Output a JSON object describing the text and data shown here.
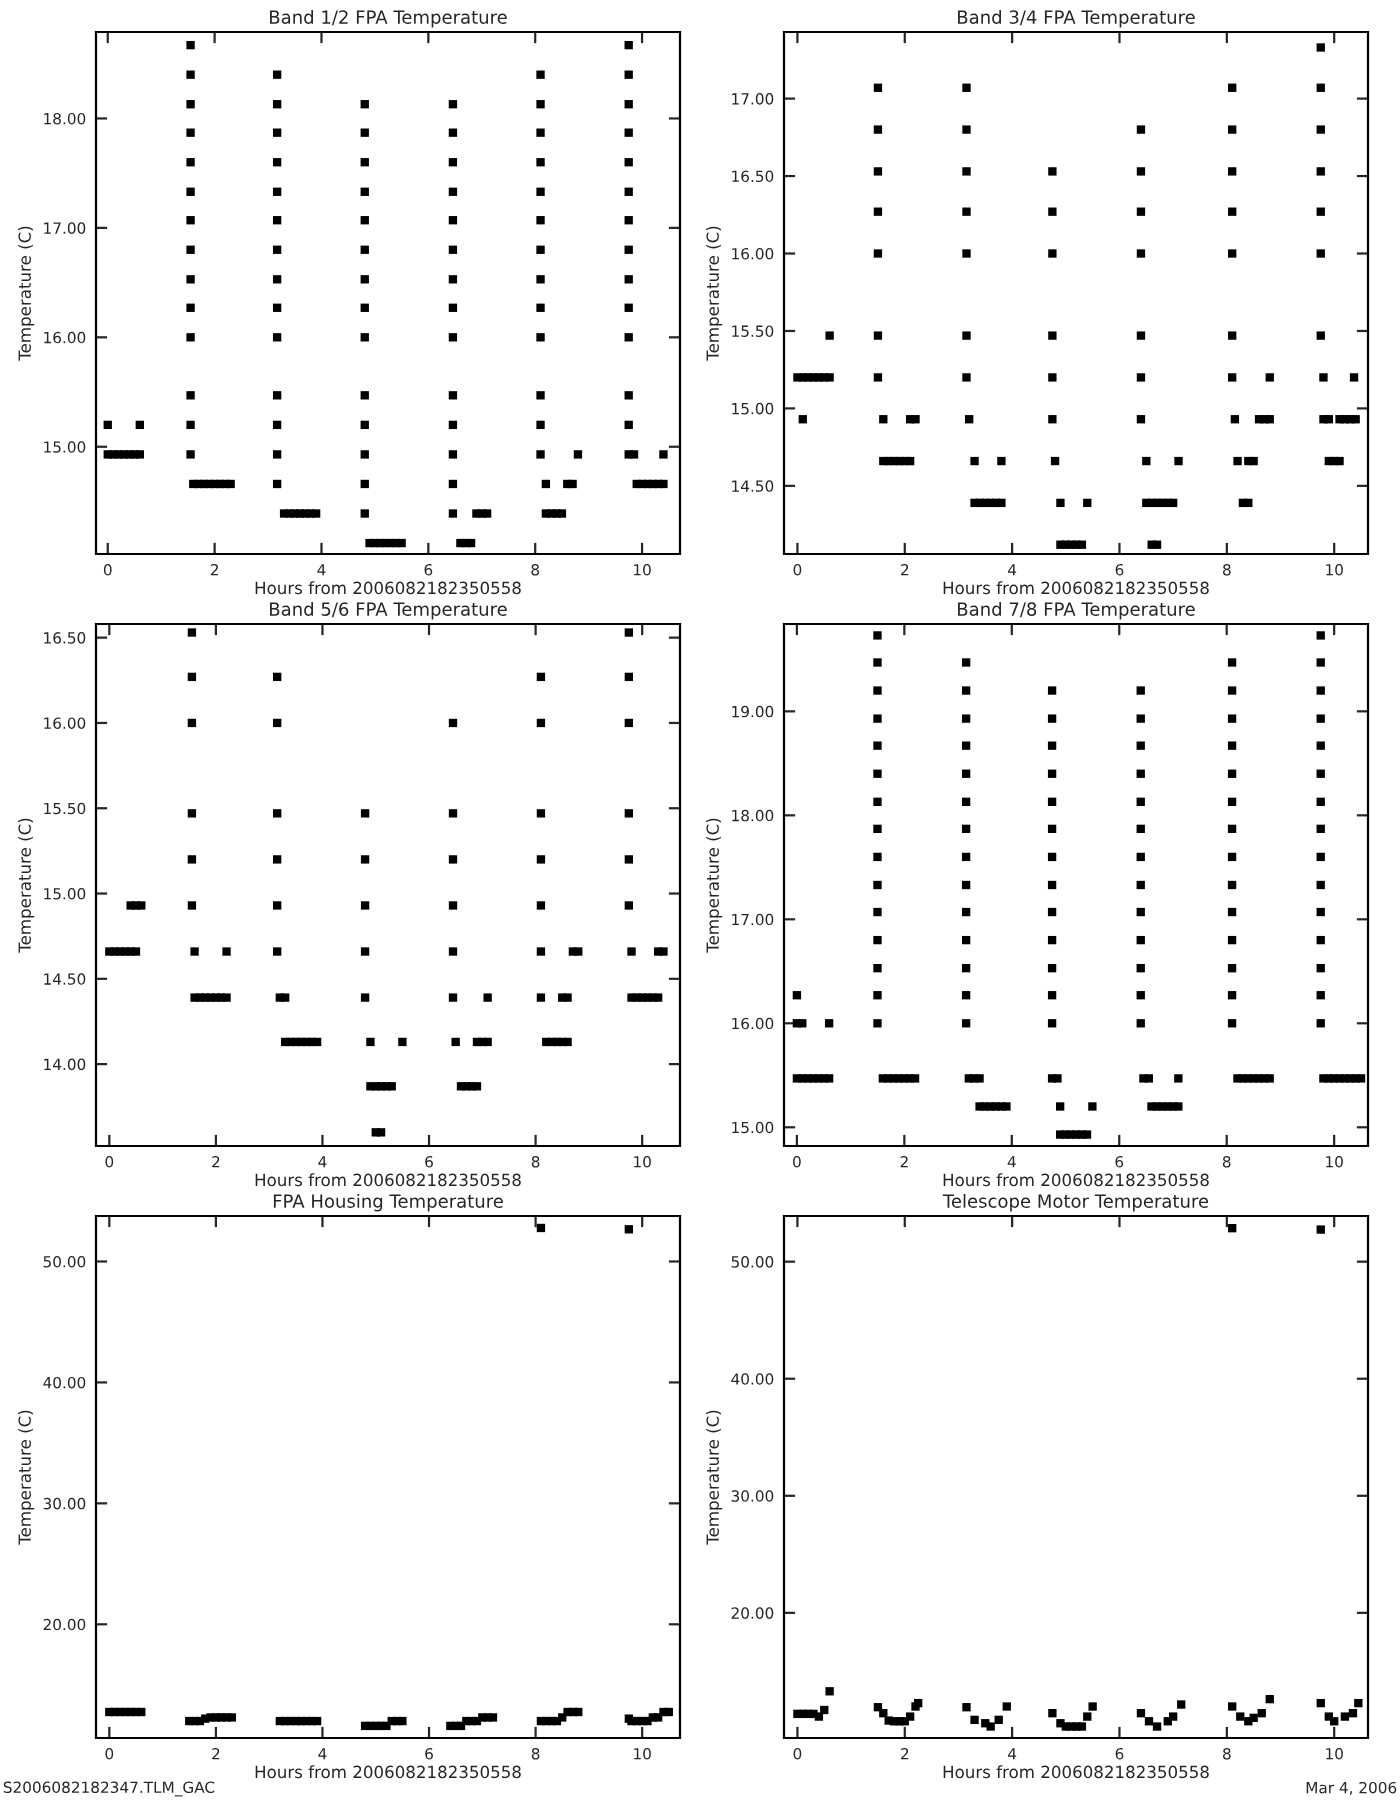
{
  "chart_data": [
    {
      "type": "scatter",
      "title": "Band 1/2 FPA Temperature",
      "xlabel": "Hours from 2006082182350558",
      "ylabel": "Temperature (C)",
      "marker": "square",
      "color": "#000000",
      "xlim": [
        -0.22,
        10.71
      ],
      "ylim": [
        14.02,
        18.79
      ],
      "xticks": [
        0,
        2,
        4,
        6,
        8,
        10
      ],
      "yticks": [
        {
          "value": 15,
          "label": "15.00"
        },
        {
          "value": 16,
          "label": "16.00"
        },
        {
          "value": 17,
          "label": "17.00"
        },
        {
          "value": 18,
          "label": "18.00"
        }
      ],
      "x": [
        0,
        0.1,
        0.2,
        0.3,
        0.4,
        0.5,
        0.6,
        0,
        0.6,
        1.55,
        1.55,
        1.55,
        1.55,
        1.55,
        1.55,
        1.55,
        1.55,
        1.55,
        1.55,
        1.55,
        1.55,
        1.55,
        1.55,
        1.6,
        1.7,
        1.8,
        1.9,
        2.0,
        2.1,
        2.2,
        2.3,
        3.17,
        3.17,
        3.17,
        3.17,
        3.17,
        3.17,
        3.17,
        3.17,
        3.17,
        3.17,
        3.17,
        3.17,
        3.17,
        3.17,
        3.3,
        3.4,
        3.5,
        3.6,
        3.7,
        3.8,
        3.9,
        4.81,
        4.81,
        4.81,
        4.81,
        4.81,
        4.81,
        4.81,
        4.81,
        4.81,
        4.81,
        4.81,
        4.81,
        4.81,
        4.81,
        4.9,
        5.0,
        5.1,
        5.2,
        5.3,
        5.4,
        5.5,
        6.46,
        6.46,
        6.46,
        6.46,
        6.46,
        6.46,
        6.46,
        6.46,
        6.46,
        6.46,
        6.46,
        6.46,
        6.46,
        6.46,
        6.6,
        6.7,
        6.8,
        6.9,
        7.0,
        7.1,
        8.1,
        8.1,
        8.1,
        8.1,
        8.1,
        8.1,
        8.1,
        8.1,
        8.1,
        8.1,
        8.1,
        8.1,
        8.1,
        8.2,
        8.2,
        8.3,
        8.4,
        8.5,
        8.6,
        8.7,
        8.8,
        9.75,
        9.75,
        9.75,
        9.75,
        9.75,
        9.75,
        9.75,
        9.75,
        9.75,
        9.75,
        9.75,
        9.75,
        9.75,
        9.75,
        9.85,
        9.9,
        10.0,
        10.1,
        10.2,
        10.3,
        10.4,
        10.4
      ],
      "values": [
        14.93,
        14.93,
        14.93,
        14.93,
        14.93,
        14.93,
        14.93,
        15.2,
        15.2,
        14.93,
        15.2,
        15.47,
        16.0,
        16.27,
        16.53,
        16.8,
        17.07,
        17.33,
        17.6,
        17.87,
        18.13,
        18.4,
        18.67,
        14.66,
        14.66,
        14.66,
        14.66,
        14.66,
        14.66,
        14.66,
        14.66,
        14.66,
        14.93,
        15.2,
        15.47,
        16.0,
        16.27,
        16.53,
        16.8,
        17.07,
        17.33,
        17.6,
        17.87,
        18.13,
        18.4,
        14.39,
        14.39,
        14.39,
        14.39,
        14.39,
        14.39,
        14.39,
        14.39,
        14.66,
        14.93,
        15.2,
        15.47,
        16.0,
        16.27,
        16.53,
        16.8,
        17.07,
        17.33,
        17.6,
        17.87,
        18.13,
        14.12,
        14.12,
        14.12,
        14.12,
        14.12,
        14.12,
        14.12,
        14.39,
        14.66,
        14.93,
        15.2,
        15.47,
        16.0,
        16.27,
        16.53,
        16.8,
        17.07,
        17.33,
        17.6,
        17.87,
        18.13,
        14.12,
        14.12,
        14.12,
        14.39,
        14.39,
        14.39,
        14.93,
        15.2,
        15.47,
        16.0,
        16.27,
        16.53,
        16.8,
        17.07,
        17.33,
        17.6,
        17.87,
        18.13,
        18.4,
        14.66,
        14.39,
        14.39,
        14.39,
        14.39,
        14.66,
        14.66,
        14.93,
        14.93,
        15.2,
        15.47,
        16.0,
        16.27,
        16.53,
        16.8,
        17.07,
        17.33,
        17.6,
        17.87,
        18.13,
        18.4,
        18.67,
        14.93,
        14.66,
        14.66,
        14.66,
        14.66,
        14.66,
        14.66,
        14.93
      ]
    },
    {
      "type": "scatter",
      "title": "Band 3/4 FPA Temperature",
      "xlabel": "Hours from 2006082182350558",
      "ylabel": "Temperature (C)",
      "marker": "square",
      "color": "#000000",
      "xlim": [
        -0.25,
        10.63
      ],
      "ylim": [
        14.06,
        17.43
      ],
      "xticks": [
        0,
        2,
        4,
        6,
        8,
        10
      ],
      "yticks": [
        {
          "value": 14.5,
          "label": "14.50"
        },
        {
          "value": 15,
          "label": "15.00"
        },
        {
          "value": 15.5,
          "label": "15.50"
        },
        {
          "value": 16,
          "label": "16.00"
        },
        {
          "value": 16.5,
          "label": "16.50"
        },
        {
          "value": 17,
          "label": "17.00"
        }
      ],
      "x": [
        0,
        0.1,
        0.2,
        0.3,
        0.4,
        0.5,
        0.6,
        0.1,
        0.6,
        1.5,
        1.5,
        1.5,
        1.5,
        1.5,
        1.5,
        1.5,
        1.6,
        1.6,
        1.7,
        1.8,
        1.9,
        2.0,
        2.1,
        2.1,
        2.2,
        3.15,
        3.15,
        3.15,
        3.15,
        3.15,
        3.15,
        3.15,
        3.2,
        3.3,
        3.8,
        3.3,
        3.4,
        3.5,
        3.6,
        3.7,
        3.8,
        4.75,
        4.75,
        4.75,
        4.75,
        4.75,
        4.75,
        4.8,
        4.9,
        4.9,
        5.0,
        5.1,
        5.2,
        5.3,
        5.4,
        6.4,
        6.4,
        6.4,
        6.4,
        6.4,
        6.4,
        6.4,
        6.5,
        6.5,
        6.6,
        6.7,
        6.8,
        6.9,
        7.0,
        6.6,
        6.7,
        7.1,
        8.1,
        8.1,
        8.1,
        8.1,
        8.1,
        8.1,
        8.1,
        8.15,
        8.2,
        8.4,
        8.5,
        8.3,
        8.4,
        8.6,
        8.7,
        8.8,
        8.8,
        9.75,
        9.75,
        9.75,
        9.75,
        9.75,
        9.75,
        9.75,
        9.8,
        9.8,
        9.9,
        9.9,
        10.0,
        10.1,
        10.1,
        10.2,
        10.3,
        10.4,
        10.37
      ],
      "values": [
        15.2,
        15.2,
        15.2,
        15.2,
        15.2,
        15.2,
        15.2,
        14.93,
        15.47,
        15.2,
        15.47,
        16.0,
        16.27,
        16.53,
        16.8,
        17.07,
        14.93,
        14.66,
        14.66,
        14.66,
        14.66,
        14.66,
        14.66,
        14.93,
        14.93,
        15.2,
        15.47,
        16.0,
        16.27,
        16.53,
        16.8,
        17.07,
        14.93,
        14.66,
        14.66,
        14.39,
        14.39,
        14.39,
        14.39,
        14.39,
        14.39,
        14.93,
        15.2,
        15.47,
        16.0,
        16.27,
        16.53,
        14.66,
        14.39,
        14.12,
        14.12,
        14.12,
        14.12,
        14.12,
        14.39,
        14.93,
        15.2,
        15.47,
        16.0,
        16.27,
        16.53,
        16.8,
        14.66,
        14.39,
        14.39,
        14.39,
        14.39,
        14.39,
        14.39,
        14.12,
        14.12,
        14.66,
        15.2,
        15.47,
        16.0,
        16.27,
        16.53,
        16.8,
        17.07,
        14.93,
        14.66,
        14.66,
        14.66,
        14.39,
        14.39,
        14.93,
        14.93,
        14.93,
        15.2,
        15.47,
        16.0,
        16.27,
        16.53,
        16.8,
        17.07,
        17.33,
        15.2,
        14.93,
        14.93,
        14.66,
        14.66,
        14.66,
        14.93,
        14.93,
        14.93,
        14.93,
        15.2
      ]
    },
    {
      "type": "scatter",
      "title": "Band 5/6 FPA Temperature",
      "xlabel": "Hours from 2006082182350558",
      "ylabel": "Temperature (C)",
      "marker": "square",
      "color": "#000000",
      "xlim": [
        -0.25,
        10.71
      ],
      "ylim": [
        13.52,
        16.58
      ],
      "xticks": [
        0,
        2,
        4,
        6,
        8,
        10
      ],
      "yticks": [
        {
          "value": 14,
          "label": "14.00"
        },
        {
          "value": 14.5,
          "label": "14.50"
        },
        {
          "value": 15,
          "label": "15.00"
        },
        {
          "value": 15.5,
          "label": "15.50"
        },
        {
          "value": 16,
          "label": "16.00"
        },
        {
          "value": 16.5,
          "label": "16.50"
        }
      ],
      "x": [
        0,
        0.1,
        0.2,
        0.3,
        0.4,
        0.5,
        0.4,
        0.5,
        0.6,
        1.55,
        1.55,
        1.55,
        1.55,
        1.55,
        1.55,
        1.6,
        1.6,
        1.7,
        1.8,
        1.9,
        2.0,
        2.1,
        2.2,
        2.2,
        3.15,
        3.15,
        3.15,
        3.15,
        3.15,
        3.15,
        3.2,
        3.3,
        3.3,
        3.4,
        3.5,
        3.6,
        3.7,
        3.8,
        3.9,
        4.8,
        4.8,
        4.8,
        4.8,
        4.8,
        4.9,
        4.9,
        5.0,
        5.1,
        5.2,
        5.3,
        5.0,
        5.1,
        5.5,
        6.45,
        6.45,
        6.45,
        6.45,
        6.45,
        6.45,
        6.5,
        6.6,
        6.7,
        6.8,
        6.9,
        6.9,
        7.0,
        7.1,
        7.1,
        8.1,
        8.1,
        8.1,
        8.1,
        8.1,
        8.1,
        8.1,
        8.2,
        8.3,
        8.4,
        8.5,
        8.6,
        8.5,
        8.6,
        8.7,
        8.8,
        9.75,
        9.75,
        9.75,
        9.75,
        9.75,
        9.75,
        9.8,
        9.8,
        9.9,
        10.0,
        10.1,
        10.2,
        10.3,
        10.3,
        10.4
      ],
      "values": [
        14.66,
        14.66,
        14.66,
        14.66,
        14.66,
        14.66,
        14.93,
        14.93,
        14.93,
        14.93,
        15.2,
        15.47,
        16.0,
        16.27,
        16.53,
        14.66,
        14.39,
        14.39,
        14.39,
        14.39,
        14.39,
        14.39,
        14.39,
        14.66,
        14.66,
        14.93,
        15.2,
        15.47,
        16.0,
        16.27,
        14.39,
        14.39,
        14.13,
        14.13,
        14.13,
        14.13,
        14.13,
        14.13,
        14.13,
        14.39,
        14.66,
        14.93,
        15.2,
        15.47,
        14.13,
        13.87,
        13.87,
        13.87,
        13.87,
        13.87,
        13.6,
        13.6,
        14.13,
        14.39,
        14.66,
        14.93,
        15.2,
        15.47,
        16.0,
        14.13,
        13.87,
        13.87,
        13.87,
        13.87,
        14.13,
        14.13,
        14.13,
        14.39,
        14.39,
        14.66,
        14.93,
        15.2,
        15.47,
        16.0,
        16.27,
        14.13,
        14.13,
        14.13,
        14.13,
        14.13,
        14.39,
        14.39,
        14.66,
        14.66,
        14.93,
        15.2,
        15.47,
        16.0,
        16.27,
        16.53,
        14.66,
        14.39,
        14.39,
        14.39,
        14.39,
        14.39,
        14.39,
        14.66,
        14.66
      ]
    },
    {
      "type": "scatter",
      "title": "Band 7/8 FPA Temperature",
      "xlabel": "Hours from 2006082182350558",
      "ylabel": "Temperature (C)",
      "marker": "square",
      "color": "#000000",
      "xlim": [
        -0.24,
        10.63
      ],
      "ylim": [
        14.82,
        19.84
      ],
      "xticks": [
        0,
        2,
        4,
        6,
        8,
        10
      ],
      "yticks": [
        {
          "value": 15,
          "label": "15.00"
        },
        {
          "value": 16,
          "label": "16.00"
        },
        {
          "value": 17,
          "label": "17.00"
        },
        {
          "value": 18,
          "label": "18.00"
        },
        {
          "value": 19,
          "label": "19.00"
        }
      ],
      "x": [
        0,
        0.1,
        0.2,
        0.3,
        0.4,
        0.5,
        0.6,
        0,
        0.1,
        0.6,
        0,
        1.5,
        1.5,
        1.5,
        1.5,
        1.5,
        1.5,
        1.5,
        1.5,
        1.5,
        1.5,
        1.5,
        1.5,
        1.5,
        1.5,
        1.5,
        1.6,
        1.7,
        1.8,
        1.9,
        2.0,
        2.1,
        2.2,
        3.15,
        3.15,
        3.15,
        3.15,
        3.15,
        3.15,
        3.15,
        3.15,
        3.15,
        3.15,
        3.15,
        3.15,
        3.15,
        3.15,
        3.2,
        3.3,
        3.4,
        3.4,
        3.5,
        3.6,
        3.7,
        3.8,
        3.9,
        4.75,
        4.75,
        4.75,
        4.75,
        4.75,
        4.75,
        4.75,
        4.75,
        4.75,
        4.75,
        4.75,
        4.75,
        4.75,
        4.75,
        4.85,
        4.9,
        5.5,
        4.9,
        5.0,
        5.1,
        5.2,
        5.3,
        5.4,
        6.4,
        6.4,
        6.4,
        6.4,
        6.4,
        6.4,
        6.4,
        6.4,
        6.4,
        6.4,
        6.4,
        6.4,
        6.4,
        6.45,
        6.55,
        7.1,
        6.6,
        6.7,
        6.8,
        6.9,
        7.0,
        7.1,
        8.1,
        8.1,
        8.1,
        8.1,
        8.1,
        8.1,
        8.1,
        8.1,
        8.1,
        8.1,
        8.1,
        8.1,
        8.1,
        8.1,
        8.2,
        8.3,
        8.4,
        8.5,
        8.6,
        8.7,
        8.8,
        9.75,
        9.75,
        9.75,
        9.75,
        9.75,
        9.75,
        9.75,
        9.75,
        9.75,
        9.75,
        9.75,
        9.75,
        9.75,
        9.75,
        9.75,
        9.8,
        9.9,
        10.0,
        10.1,
        10.2,
        10.3,
        10.4,
        10.5
      ],
      "values": [
        15.47,
        15.47,
        15.47,
        15.47,
        15.47,
        15.47,
        15.47,
        16.0,
        16.0,
        16.0,
        16.27,
        16.0,
        16.27,
        16.53,
        16.8,
        17.07,
        17.33,
        17.6,
        17.87,
        18.13,
        18.4,
        18.67,
        18.93,
        19.2,
        19.47,
        19.73,
        15.47,
        15.47,
        15.47,
        15.47,
        15.47,
        15.47,
        15.47,
        16.0,
        16.27,
        16.53,
        16.8,
        17.07,
        17.33,
        17.6,
        17.87,
        18.13,
        18.4,
        18.67,
        18.93,
        19.2,
        19.47,
        15.47,
        15.47,
        15.47,
        15.2,
        15.2,
        15.2,
        15.2,
        15.2,
        15.2,
        16.0,
        16.27,
        16.53,
        16.8,
        17.07,
        17.33,
        17.6,
        17.87,
        18.13,
        18.4,
        18.67,
        18.93,
        19.2,
        15.47,
        15.47,
        15.2,
        15.2,
        14.93,
        14.93,
        14.93,
        14.93,
        14.93,
        14.93,
        16.0,
        16.27,
        16.53,
        16.8,
        17.07,
        17.33,
        17.6,
        17.87,
        18.13,
        18.4,
        18.67,
        18.93,
        19.2,
        15.47,
        15.47,
        15.47,
        15.2,
        15.2,
        15.2,
        15.2,
        15.2,
        15.2,
        16.0,
        16.27,
        16.53,
        16.8,
        17.07,
        17.33,
        17.6,
        17.87,
        18.13,
        18.4,
        18.67,
        18.93,
        19.2,
        19.47,
        15.47,
        15.47,
        15.47,
        15.47,
        15.47,
        15.47,
        15.47,
        16.0,
        16.27,
        16.53,
        16.8,
        17.07,
        17.33,
        17.6,
        17.87,
        18.13,
        18.4,
        18.67,
        18.93,
        19.2,
        19.47,
        19.73,
        15.47,
        15.47,
        15.47,
        15.47,
        15.47,
        15.47,
        15.47,
        15.47
      ]
    },
    {
      "type": "scatter",
      "title": "FPA Housing Temperature",
      "xlabel": "Hours from 2006082182350558",
      "ylabel": "Temperature (C)",
      "marker": "square",
      "color": "#000000",
      "xlim": [
        -0.25,
        10.71
      ],
      "ylim": [
        10.6,
        53.76
      ],
      "xticks": [
        0,
        2,
        4,
        6,
        8,
        10
      ],
      "yticks": [
        {
          "value": 20,
          "label": "20.00"
        },
        {
          "value": 30,
          "label": "30.00"
        },
        {
          "value": 40,
          "label": "40.00"
        },
        {
          "value": 50,
          "label": "50.00"
        }
      ],
      "annotations": [
        "S2006082182347.TLM_GAC"
      ],
      "x": [
        0,
        0.1,
        0.2,
        0.3,
        0.4,
        0.5,
        0.6,
        1.5,
        1.6,
        1.7,
        1.8,
        1.9,
        2.0,
        2.1,
        2.2,
        2.3,
        3.2,
        3.3,
        3.4,
        3.5,
        3.6,
        3.7,
        3.8,
        3.9,
        4.8,
        4.9,
        5.0,
        5.1,
        5.2,
        5.3,
        5.4,
        5.5,
        6.4,
        6.5,
        6.6,
        6.7,
        6.8,
        6.9,
        7.0,
        7.1,
        7.2,
        8.1,
        8.1,
        8.2,
        8.3,
        8.4,
        8.5,
        8.6,
        8.7,
        8.8,
        9.75,
        9.75,
        9.8,
        9.9,
        10.0,
        10.1,
        10.2,
        10.3,
        10.4,
        10.5
      ],
      "values": [
        12.75,
        12.75,
        12.75,
        12.75,
        12.75,
        12.75,
        12.75,
        12.0,
        12.0,
        12.0,
        12.2,
        12.3,
        12.3,
        12.3,
        12.3,
        12.3,
        12.0,
        12.0,
        12.0,
        12.0,
        12.0,
        12.0,
        12.0,
        12.0,
        11.6,
        11.6,
        11.6,
        11.6,
        11.6,
        12.0,
        12.0,
        12.0,
        11.6,
        11.6,
        11.6,
        12.0,
        12.0,
        12.0,
        12.3,
        12.3,
        12.3,
        52.77,
        12.0,
        12.0,
        12.0,
        12.0,
        12.3,
        12.75,
        12.75,
        12.75,
        52.66,
        12.2,
        12.0,
        12.0,
        12.0,
        12.0,
        12.3,
        12.3,
        12.75,
        12.75
      ]
    },
    {
      "type": "scatter",
      "title": "Telescope Motor Temperature",
      "xlabel": "Hours from 2006082182350558",
      "ylabel": "Temperature (C)",
      "marker": "square",
      "color": "#000000",
      "xlim": [
        -0.25,
        10.63
      ],
      "ylim": [
        9.31,
        53.9
      ],
      "xticks": [
        0,
        2,
        4,
        6,
        8,
        10
      ],
      "yticks": [
        {
          "value": 20,
          "label": "20.00"
        },
        {
          "value": 30,
          "label": "30.00"
        },
        {
          "value": 40,
          "label": "40.00"
        },
        {
          "value": 50,
          "label": "50.00"
        }
      ],
      "annotations": [
        "Mar 4, 2006"
      ],
      "x": [
        0,
        0.1,
        0.2,
        0.3,
        0.4,
        0.5,
        0.6,
        1.5,
        1.6,
        1.7,
        1.8,
        1.9,
        2.0,
        2.1,
        2.2,
        2.25,
        3.15,
        3.3,
        3.5,
        3.6,
        3.75,
        3.9,
        4.75,
        4.9,
        5.0,
        5.1,
        5.2,
        5.3,
        5.4,
        5.5,
        6.4,
        6.55,
        6.7,
        6.9,
        7.0,
        7.15,
        8.1,
        8.1,
        8.25,
        8.4,
        8.5,
        8.65,
        8.8,
        9.75,
        9.75,
        9.9,
        10.0,
        10.2,
        10.35,
        10.45
      ],
      "values": [
        11.37,
        11.37,
        11.37,
        11.37,
        11.14,
        11.7,
        13.3,
        11.94,
        11.43,
        10.8,
        10.74,
        10.74,
        10.74,
        11.14,
        12.0,
        12.29,
        11.94,
        10.86,
        10.57,
        10.29,
        10.86,
        12.0,
        11.43,
        10.57,
        10.29,
        10.29,
        10.29,
        10.29,
        11.14,
        12.0,
        11.43,
        10.74,
        10.29,
        10.74,
        11.14,
        12.17,
        52.86,
        12.0,
        11.14,
        10.74,
        11.03,
        11.43,
        12.63,
        52.74,
        12.29,
        11.14,
        10.74,
        11.14,
        11.43,
        12.29
      ]
    }
  ]
}
